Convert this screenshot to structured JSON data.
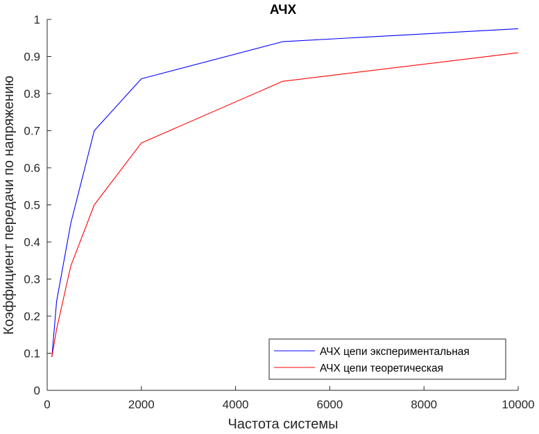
{
  "chart_data": {
    "type": "line",
    "title": "АЧХ",
    "xlabel": "Частота системы",
    "ylabel": "Коэффициент передачи по напряжению",
    "xlim": [
      0,
      10000
    ],
    "ylim": [
      0,
      1
    ],
    "xticks": [
      0,
      2000,
      4000,
      6000,
      8000,
      10000
    ],
    "yticks": [
      0,
      0.1,
      0.2,
      0.3,
      0.4,
      0.5,
      0.6,
      0.7,
      0.8,
      0.9,
      1
    ],
    "grid": false,
    "legend_position": "bottom-right",
    "series": [
      {
        "name": "АЧХ цепи экспериментальная",
        "color": "#0000ff",
        "x": [
          100,
          200,
          500,
          1000,
          2000,
          5000,
          10000
        ],
        "y": [
          0.09,
          0.24,
          0.45,
          0.7,
          0.84,
          0.94,
          0.975
        ]
      },
      {
        "name": "АЧХ цепи теоретическая",
        "color": "#ff0000",
        "x": [
          100,
          200,
          500,
          1000,
          2000,
          5000,
          10000
        ],
        "y": [
          0.09,
          0.165,
          0.335,
          0.5,
          0.667,
          0.833,
          0.91
        ]
      }
    ]
  }
}
